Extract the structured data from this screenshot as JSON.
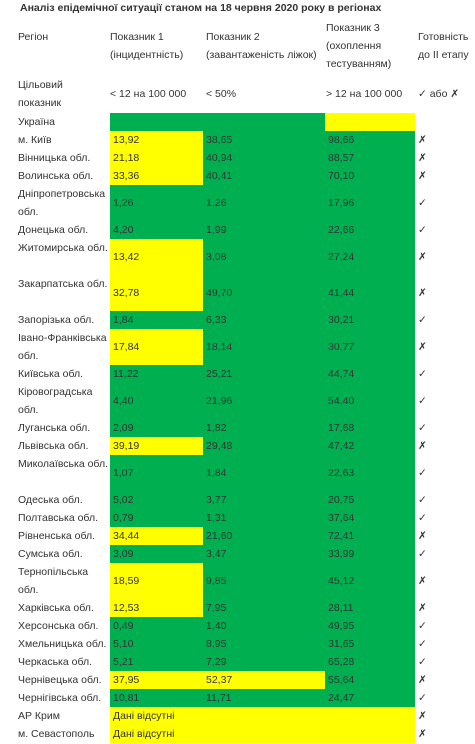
{
  "caption": "Аналіз епідемічної ситуації станом на 18 червня 2020 року в регіонах",
  "header": {
    "region": "Регіон",
    "ind1_l1": "Показник 1",
    "ind1_l2": "(інцидентність)",
    "ind2_l1": "Показник 2",
    "ind2_l2": "(завантаженість ліжок)",
    "ind3_l1": "Показник 3",
    "ind3_l2": "(охоплення",
    "ind3_l3": "тестуванням)",
    "ready_l1": "Готовність",
    "ready_l2": "до ІІ етапу"
  },
  "target": {
    "label_l1": "Цільовий",
    "label_l2": "показник",
    "ind1": "< 12 на 100 000",
    "ind2": "< 50%",
    "ind3": "> 12 на 100 000",
    "ready": "✓ або ✗"
  },
  "colors": {
    "green": "#00b050",
    "yellow": "#ffff00"
  },
  "rows": [
    {
      "name": "Україна",
      "v": [
        "",
        "",
        ""
      ],
      "c": [
        "green",
        "green",
        "yellow"
      ],
      "ready": "",
      "h": 18
    },
    {
      "name": "м. Київ",
      "v": [
        "13,92",
        "38,65",
        "98,66"
      ],
      "c": [
        "yellow",
        "green",
        "green"
      ],
      "ready": "✗",
      "h": 18
    },
    {
      "name": "Вінницька обл.",
      "v": [
        "21,18",
        "40,94",
        "88,57"
      ],
      "c": [
        "yellow",
        "green",
        "green"
      ],
      "ready": "✗",
      "h": 18
    },
    {
      "name": "Волинська обл.",
      "v": [
        "33,36",
        "40,41",
        "70,10"
      ],
      "c": [
        "yellow",
        "green",
        "green"
      ],
      "ready": "✗",
      "h": 18
    },
    {
      "name": "Дніпропетровська обл.",
      "v": [
        "1,26",
        "1,26",
        "17,96"
      ],
      "c": [
        "green",
        "green",
        "green"
      ],
      "ready": "✓",
      "h": 36
    },
    {
      "name": "Донецька обл.",
      "v": [
        "4,20",
        "1,99",
        "22,66"
      ],
      "c": [
        "green",
        "green",
        "green"
      ],
      "ready": "✓",
      "h": 18
    },
    {
      "name": "Житомирська обл.",
      "v": [
        "13,42",
        "3,08",
        "27,24"
      ],
      "c": [
        "yellow",
        "green",
        "green"
      ],
      "ready": "✗",
      "h": 36
    },
    {
      "name": "Закарпатська обл.",
      "v": [
        "32,78",
        "49,70",
        "41,44"
      ],
      "c": [
        "yellow",
        "green",
        "green"
      ],
      "ready": "✗",
      "h": 36
    },
    {
      "name": "Запорізька обл.",
      "v": [
        "1,84",
        "6,33",
        "30,21"
      ],
      "c": [
        "green",
        "green",
        "green"
      ],
      "ready": "✓",
      "h": 18
    },
    {
      "name": "Івано-Франківська обл.",
      "v": [
        "17,84",
        "18,14",
        "30,77"
      ],
      "c": [
        "yellow",
        "green",
        "green"
      ],
      "ready": "✗",
      "h": 36
    },
    {
      "name": "Київська обл.",
      "v": [
        "11,22",
        "25,21",
        "44,74"
      ],
      "c": [
        "green",
        "green",
        "green"
      ],
      "ready": "✓",
      "h": 18
    },
    {
      "name": "Кіровоградська обл.",
      "v": [
        "4,40",
        "21,96",
        "54,40"
      ],
      "c": [
        "green",
        "green",
        "green"
      ],
      "ready": "✓",
      "h": 36
    },
    {
      "name": "Луганська обл.",
      "v": [
        "2,09",
        "1,82",
        "17,68"
      ],
      "c": [
        "green",
        "green",
        "green"
      ],
      "ready": "✓",
      "h": 18
    },
    {
      "name": "Львівська обл.",
      "v": [
        "39,19",
        "29,48",
        "47,42"
      ],
      "c": [
        "yellow",
        "green",
        "green"
      ],
      "ready": "✗",
      "h": 18
    },
    {
      "name": "Миколаївська обл.",
      "v": [
        "1,07",
        "1,84",
        "22,63"
      ],
      "c": [
        "green",
        "green",
        "green"
      ],
      "ready": "✓",
      "h": 36
    },
    {
      "name": "Одеська обл.",
      "v": [
        "5,02",
        "3,77",
        "20,75"
      ],
      "c": [
        "green",
        "green",
        "green"
      ],
      "ready": "✓",
      "h": 18
    },
    {
      "name": "Полтавська обл.",
      "v": [
        "0,79",
        "1,31",
        "37,64"
      ],
      "c": [
        "green",
        "green",
        "green"
      ],
      "ready": "✓",
      "h": 18
    },
    {
      "name": "Рівненська обл.",
      "v": [
        "34,44",
        "21,60",
        "72,41"
      ],
      "c": [
        "yellow",
        "green",
        "green"
      ],
      "ready": "✗",
      "h": 18
    },
    {
      "name": "Сумська обл.",
      "v": [
        "3,09",
        "3,47",
        "33,99"
      ],
      "c": [
        "green",
        "green",
        "green"
      ],
      "ready": "✓",
      "h": 18
    },
    {
      "name": "Тернопільська обл.",
      "v": [
        "18,59",
        "9,85",
        "45,12"
      ],
      "c": [
        "yellow",
        "green",
        "green"
      ],
      "ready": "✗",
      "h": 36
    },
    {
      "name": "Харківська обл.",
      "v": [
        "12,53",
        "7,95",
        "28,11"
      ],
      "c": [
        "yellow",
        "green",
        "green"
      ],
      "ready": "✗",
      "h": 18
    },
    {
      "name": "Херсонська обл.",
      "v": [
        "0,49",
        "1,40",
        "49,95"
      ],
      "c": [
        "green",
        "green",
        "green"
      ],
      "ready": "✓",
      "h": 18
    },
    {
      "name": "Хмельницька обл.",
      "v": [
        "5,10",
        "8,95",
        "31,65"
      ],
      "c": [
        "green",
        "green",
        "green"
      ],
      "ready": "✓",
      "h": 18
    },
    {
      "name": "Черкаська обл.",
      "v": [
        "5,21",
        "7,29",
        "65,28"
      ],
      "c": [
        "green",
        "green",
        "green"
      ],
      "ready": "✓",
      "h": 18
    },
    {
      "name": "Чернівецька обл.",
      "v": [
        "37,95",
        "52,37",
        "55,64"
      ],
      "c": [
        "yellow",
        "yellow",
        "green"
      ],
      "ready": "✗",
      "h": 18
    },
    {
      "name": "Чернігівська обл.",
      "v": [
        "10,81",
        "11,71",
        "24,47"
      ],
      "c": [
        "green",
        "green",
        "green"
      ],
      "ready": "✓",
      "h": 18
    }
  ],
  "nodata_rows": [
    {
      "name": "АР Крим",
      "text": "Дані відсутні",
      "ready": "✗"
    },
    {
      "name": "м. Севастополь",
      "text": "Дані відсутні",
      "ready": "✗"
    }
  ]
}
